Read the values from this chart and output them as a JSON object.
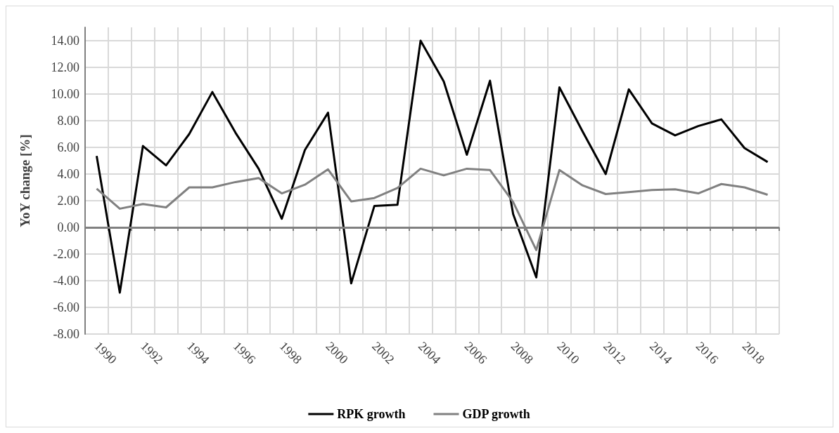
{
  "chart_data": {
    "type": "line",
    "ylabel": "YoY change [%]",
    "categories": [
      "1990",
      null,
      "1992",
      null,
      "1994",
      null,
      "1996",
      null,
      "1998",
      null,
      "2000",
      null,
      "2002",
      null,
      "2004",
      null,
      "2006",
      null,
      "2008",
      null,
      "2010",
      null,
      "2012",
      null,
      "2014",
      null,
      "2016",
      null,
      "2018",
      null
    ],
    "series": [
      {
        "name": "RPK growth",
        "color": "#000000",
        "values": [
          5.35,
          -4.9,
          6.1,
          4.65,
          7.0,
          10.15,
          7.1,
          4.4,
          0.65,
          5.8,
          8.6,
          -4.2,
          1.6,
          1.7,
          14.0,
          10.95,
          5.45,
          11.0,
          1.0,
          -3.75,
          10.5,
          7.2,
          4.0,
          10.35,
          7.8,
          6.9,
          7.6,
          8.1,
          5.95,
          4.9
        ]
      },
      {
        "name": "GDP growth",
        "color": "#808080",
        "values": [
          2.9,
          1.4,
          1.75,
          1.5,
          3.0,
          3.0,
          3.4,
          3.7,
          2.55,
          3.2,
          4.35,
          1.95,
          2.2,
          2.95,
          4.4,
          3.9,
          4.4,
          4.3,
          1.9,
          -1.7,
          4.3,
          3.15,
          2.5,
          2.65,
          2.8,
          2.85,
          2.55,
          3.25,
          3.0,
          2.45
        ]
      }
    ],
    "ylim": [
      -8,
      15
    ],
    "yticks": [
      {
        "value": -8,
        "label": "-8.00"
      },
      {
        "value": -6,
        "label": "-6.00"
      },
      {
        "value": -4,
        "label": "-4.00"
      },
      {
        "value": -2,
        "label": "-2.00"
      },
      {
        "value": 0,
        "label": "0.00"
      },
      {
        "value": 2,
        "label": "2.00"
      },
      {
        "value": 4,
        "label": "4.00"
      },
      {
        "value": 6,
        "label": "6.00"
      },
      {
        "value": 8,
        "label": "8.00"
      },
      {
        "value": 10,
        "label": "10.00"
      },
      {
        "value": 12,
        "label": "12.00"
      },
      {
        "value": 14,
        "label": "14.00"
      }
    ],
    "grid": true,
    "legend": "bottom",
    "marker": "none",
    "line_style": "solid"
  }
}
